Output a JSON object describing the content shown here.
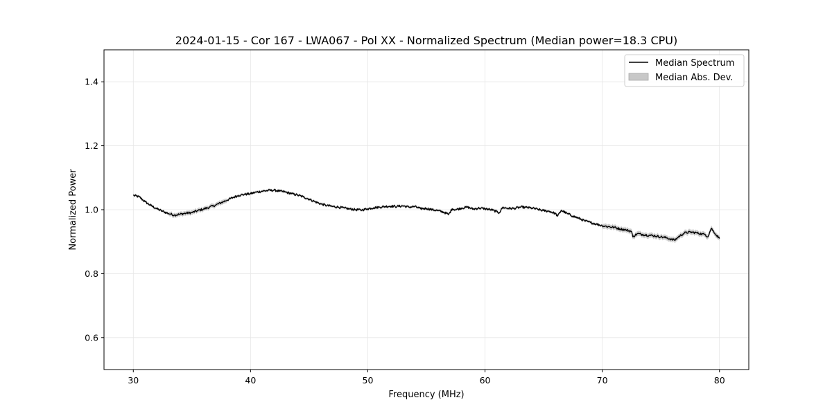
{
  "chart_data": {
    "type": "line",
    "title": "2024-01-15 - Cor 167 - LWA067 - Pol XX - Normalized Spectrum (Median power=18.3 CPU)",
    "xlabel": "Frequency (MHz)",
    "ylabel": "Normalized Power",
    "xlim": [
      27.5,
      82.5
    ],
    "ylim": [
      0.5,
      1.5
    ],
    "xticks": [
      30,
      40,
      50,
      60,
      70,
      80
    ],
    "xtick_labels": [
      "30",
      "40",
      "50",
      "60",
      "70",
      "80"
    ],
    "yticks": [
      0.6,
      0.8,
      1.0,
      1.2,
      1.4
    ],
    "ytick_labels": [
      "0.6",
      "0.8",
      "1.0",
      "1.2",
      "1.4"
    ],
    "grid": true,
    "legend": {
      "position": "top-right",
      "entries": [
        {
          "label": "Median Spectrum",
          "kind": "line",
          "color": "#000000"
        },
        {
          "label": "Median Abs. Dev.",
          "kind": "band",
          "color": "#c8c8c8"
        }
      ]
    },
    "series": [
      {
        "name": "Median Spectrum",
        "color": "#000000",
        "x": [
          30,
          30.5,
          31,
          31.5,
          32,
          32.5,
          33,
          33.2,
          33.5,
          34,
          34.5,
          35,
          35.5,
          36,
          36.5,
          37,
          37.5,
          38,
          38.5,
          39,
          39.5,
          40,
          40.5,
          41,
          41.5,
          42,
          42.5,
          43,
          43.5,
          44,
          44.5,
          45,
          45.5,
          46,
          46.5,
          47,
          47.5,
          48,
          48.5,
          49,
          49.5,
          50,
          50.5,
          51,
          51.5,
          52,
          52.5,
          53,
          53.5,
          54,
          54.5,
          55,
          55.5,
          56,
          56.5,
          56.9,
          57.2,
          57.5,
          58,
          58.5,
          59,
          59.5,
          60,
          60.5,
          61,
          61.2,
          61.5,
          62,
          62.5,
          63,
          63.5,
          64,
          64.5,
          65,
          65.5,
          66,
          66.2,
          66.5,
          67,
          67.5,
          68,
          68.5,
          69,
          69.5,
          70,
          70.5,
          71,
          71.5,
          72,
          72.5,
          72.6,
          73,
          73.5,
          74,
          74.5,
          75,
          75.5,
          75.9,
          76.2,
          76.5,
          77,
          77.5,
          78,
          78.5,
          78.8,
          79,
          79.3,
          79.6,
          80
        ],
        "values": [
          1.045,
          1.04,
          1.025,
          1.013,
          1.003,
          0.995,
          0.988,
          0.986,
          0.983,
          0.986,
          0.989,
          0.991,
          0.997,
          1.002,
          1.008,
          1.014,
          1.022,
          1.03,
          1.038,
          1.045,
          1.048,
          1.05,
          1.055,
          1.058,
          1.06,
          1.061,
          1.058,
          1.055,
          1.05,
          1.046,
          1.04,
          1.033,
          1.025,
          1.018,
          1.013,
          1.01,
          1.008,
          1.005,
          1.002,
          1.0,
          0.999,
          1.003,
          1.006,
          1.008,
          1.01,
          1.011,
          1.01,
          1.012,
          1.008,
          1.01,
          1.003,
          1.004,
          1.0,
          0.997,
          0.992,
          0.985,
          1.003,
          1.0,
          1.005,
          1.008,
          1.002,
          1.005,
          1.003,
          1.0,
          0.994,
          0.99,
          1.007,
          1.004,
          1.004,
          1.008,
          1.007,
          1.005,
          1.001,
          0.997,
          0.995,
          0.988,
          0.98,
          0.998,
          0.988,
          0.98,
          0.973,
          0.965,
          0.96,
          0.955,
          0.95,
          0.947,
          0.945,
          0.94,
          0.937,
          0.932,
          0.915,
          0.925,
          0.922,
          0.92,
          0.918,
          0.915,
          0.912,
          0.907,
          0.905,
          0.915,
          0.927,
          0.93,
          0.928,
          0.924,
          0.922,
          0.915,
          0.942,
          0.926,
          0.91
        ]
      }
    ]
  }
}
